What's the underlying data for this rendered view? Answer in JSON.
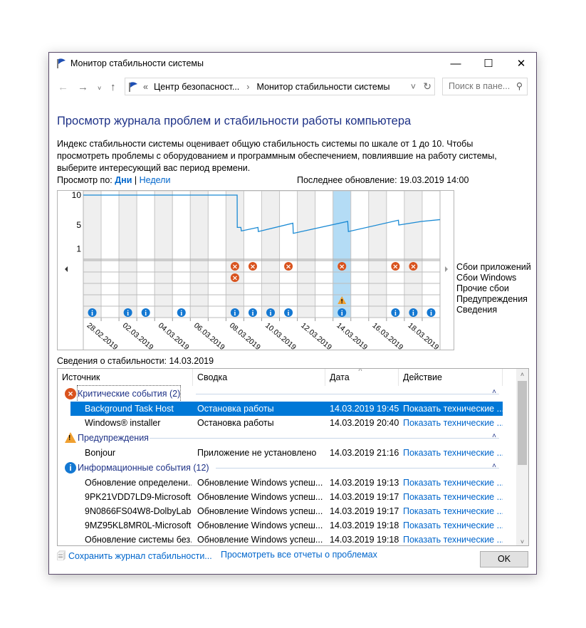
{
  "window": {
    "title": "Монитор стабильности системы",
    "minimize": "—",
    "maximize": "☐",
    "close": "✕"
  },
  "address": {
    "prefix": "«",
    "crumbs": [
      "Центр безопасност...",
      "Монитор стабильности системы"
    ],
    "search_placeholder": "Поиск в пане..."
  },
  "heading": "Просмотр журнала проблем и стабильности работы компьютера",
  "description": "Индекс стабильности системы оценивает общую стабильность системы по шкале от 1 до 10. Чтобы просмотреть проблемы с оборудованием и программным обеспечением, повлиявшие на работу системы, выберите интересующий вас период времени.",
  "view": {
    "label": "Просмотр по:",
    "days": "Дни",
    "sep": "|",
    "weeks": "Недели",
    "last_update": "Последнее обновление: 19.03.2019 14:00"
  },
  "chart_data": {
    "type": "line",
    "ylim": [
      1,
      10
    ],
    "yticks": [
      "10",
      "5",
      "1"
    ],
    "days": [
      "28.02.2019",
      "01.03.2019",
      "02.03.2019",
      "03.03.2019",
      "04.03.2019",
      "05.03.2019",
      "06.03.2019",
      "07.03.2019",
      "08.03.2019",
      "09.03.2019",
      "10.03.2019",
      "11.03.2019",
      "12.03.2019",
      "13.03.2019",
      "14.03.2019",
      "15.03.2019",
      "16.03.2019",
      "17.03.2019",
      "18.03.2019",
      "19.03.2019"
    ],
    "date_labels": [
      "28.02.2019",
      "02.03.2019",
      "04.03.2019",
      "06.03.2019",
      "08.03.2019",
      "10.03.2019",
      "12.03.2019",
      "14.03.2019",
      "16.03.2019",
      "18.03.2019"
    ],
    "selected_day": "14.03.2019",
    "stability_index": [
      [
        "28.02.2019 00:00",
        10
      ],
      [
        "08.03.2019 15:00",
        10
      ],
      [
        "08.03.2019 15:10",
        4.6
      ],
      [
        "08.03.2019 20:00",
        4.6
      ],
      [
        "08.03.2019 20:40",
        4.0
      ],
      [
        "09.03.2019 19:00",
        4.6
      ],
      [
        "09.03.2019 19:30",
        3.9
      ],
      [
        "11.03.2019 18:00",
        5.3
      ],
      [
        "11.03.2019 18:30",
        3.6
      ],
      [
        "14.03.2019 19:45",
        5.6
      ],
      [
        "14.03.2019 20:40",
        3.9
      ],
      [
        "17.03.2019 16:00",
        5.8
      ],
      [
        "17.03.2019 16:30",
        5.0
      ],
      [
        "18.03.2019 23:00",
        5.6
      ],
      [
        "19.03.2019 23:59",
        5.9
      ]
    ],
    "event_rows": [
      "Сбои приложений",
      "Сбои Windows",
      "Прочие сбои",
      "Предупреждения",
      "Сведения"
    ],
    "events": {
      "Сбои приложений": [
        "08.03.2019",
        "09.03.2019",
        "11.03.2019",
        "14.03.2019",
        "17.03.2019",
        "18.03.2019"
      ],
      "Сбои Windows": [
        "08.03.2019"
      ],
      "Прочие сбои": [],
      "Предупреждения": [
        "14.03.2019"
      ],
      "Сведения": [
        "28.02.2019",
        "02.03.2019",
        "03.03.2019",
        "05.03.2019",
        "08.03.2019",
        "09.03.2019",
        "10.03.2019",
        "11.03.2019",
        "14.03.2019",
        "17.03.2019",
        "18.03.2019",
        "19.03.2019"
      ]
    },
    "colors": {
      "line": "#1a8ad4",
      "error": "#d9531e",
      "warning": "#f0a030",
      "info": "#1478d2",
      "selected": "#b4dcf5",
      "shade": "#efefef"
    }
  },
  "details_title": "Сведения о стабильности: 14.03.2019",
  "table": {
    "columns": [
      "Источник",
      "Сводка",
      "Дата",
      "Действие"
    ],
    "groups": [
      {
        "title": "Критические события (2)",
        "icon": "error",
        "rows": [
          [
            "Background Task Host",
            "Остановка работы",
            "14.03.2019 19:45",
            "Показать технические ..."
          ],
          [
            "Windows® installer",
            "Остановка работы",
            "14.03.2019 20:40",
            "Показать технические ..."
          ]
        ]
      },
      {
        "title": "Предупреждения",
        "icon": "warning",
        "rows": [
          [
            "Bonjour",
            "Приложение не установлено",
            "14.03.2019 21:16",
            "Показать технические ..."
          ]
        ]
      },
      {
        "title": "Информационные события (12)",
        "icon": "info",
        "rows": [
          [
            "Обновление определени...",
            "Обновление Windows успеш...",
            "14.03.2019 19:13",
            "Показать технические ..."
          ],
          [
            "9PK21VDD7LD9-Microsoft....",
            "Обновление Windows успеш...",
            "14.03.2019 19:17",
            "Показать технические ..."
          ],
          [
            "9N0866FS04W8-DolbyLab...",
            "Обновление Windows успеш...",
            "14.03.2019 19:17",
            "Показать технические ..."
          ],
          [
            "9MZ95KL8MR0L-Microsoft...",
            "Обновление Windows успеш...",
            "14.03.2019 19:18",
            "Показать технические ..."
          ],
          [
            "Обновление системы без...",
            "Обновление Windows успеш...",
            "14.03.2019 19:18",
            "Показать технические ..."
          ]
        ]
      }
    ]
  },
  "footer": {
    "save": "Сохранить журнал стабильности...",
    "all_reports": "Просмотреть все отчеты о проблемах",
    "ok": "OK"
  }
}
